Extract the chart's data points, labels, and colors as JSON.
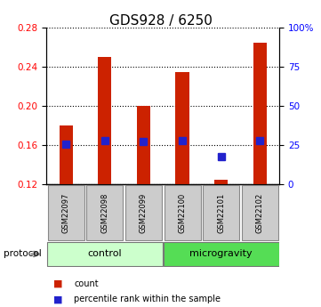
{
  "title": "GDS928 / 6250",
  "samples": [
    "GSM22097",
    "GSM22098",
    "GSM22099",
    "GSM22100",
    "GSM22101",
    "GSM22102"
  ],
  "bar_bottoms": [
    0.12,
    0.12,
    0.12,
    0.12,
    0.12,
    0.12
  ],
  "bar_tops": [
    0.18,
    0.25,
    0.2,
    0.235,
    0.125,
    0.265
  ],
  "blue_markers": [
    0.161,
    0.165,
    0.164,
    0.165,
    0.148,
    0.165
  ],
  "bar_color": "#cc2200",
  "blue_color": "#2222cc",
  "ylim": [
    0.12,
    0.28
  ],
  "yticks_left": [
    0.12,
    0.16,
    0.2,
    0.24,
    0.28
  ],
  "yticks_right": [
    0,
    25,
    50,
    75,
    100
  ],
  "ytick_right_labels": [
    "0",
    "25",
    "50",
    "75",
    "100%"
  ],
  "groups": [
    {
      "label": "control",
      "start": 0,
      "end": 3,
      "color": "#ccffcc"
    },
    {
      "label": "microgravity",
      "start": 3,
      "end": 6,
      "color": "#55dd55"
    }
  ],
  "protocol_label": "protocol",
  "legend_items": [
    {
      "label": "count",
      "color": "#cc2200"
    },
    {
      "label": "percentile rank within the sample",
      "color": "#2222cc"
    }
  ],
  "background_color": "#ffffff",
  "bar_width": 0.35,
  "marker_size": 6,
  "label_box_color": "#cccccc",
  "label_box_edge": "#888888"
}
